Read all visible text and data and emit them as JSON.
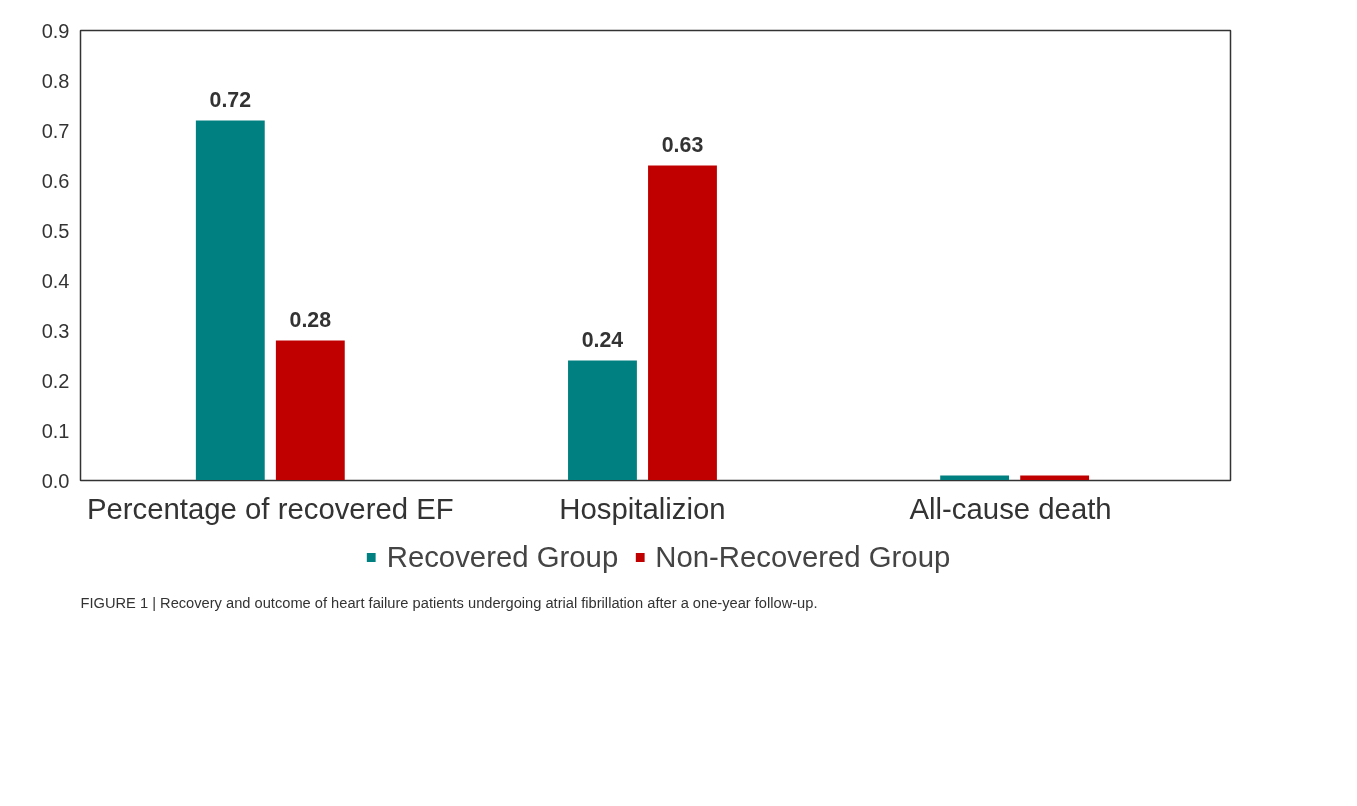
{
  "chart_data": {
    "type": "bar",
    "categories": [
      "Percentage of recovered EF",
      "Hospitalizion",
      "All-cause  death"
    ],
    "series": [
      {
        "name": "Recovered Group",
        "color": "#008080",
        "values": [
          0.72,
          0.24,
          0.01
        ],
        "value_labels": [
          "0.72",
          "0.24",
          null
        ]
      },
      {
        "name": "Non-Recovered Group",
        "color": "#c00000",
        "values": [
          0.28,
          0.63,
          0.01
        ],
        "value_labels": [
          "0.28",
          "0.63",
          null
        ]
      }
    ],
    "ylim": [
      0,
      0.9
    ],
    "yticks": [
      {
        "value": 0,
        "label": "0.0"
      },
      0.1,
      0.2,
      0.3,
      0.4,
      0.5,
      0.6,
      0.7,
      0.8,
      0.9
    ],
    "grid": false,
    "legend": "bottom",
    "annotations": [
      "FIGURE 1 | Recovery and outcome of heart failure patients undergoing atrial fibrillation after a one-year follow-up."
    ]
  }
}
